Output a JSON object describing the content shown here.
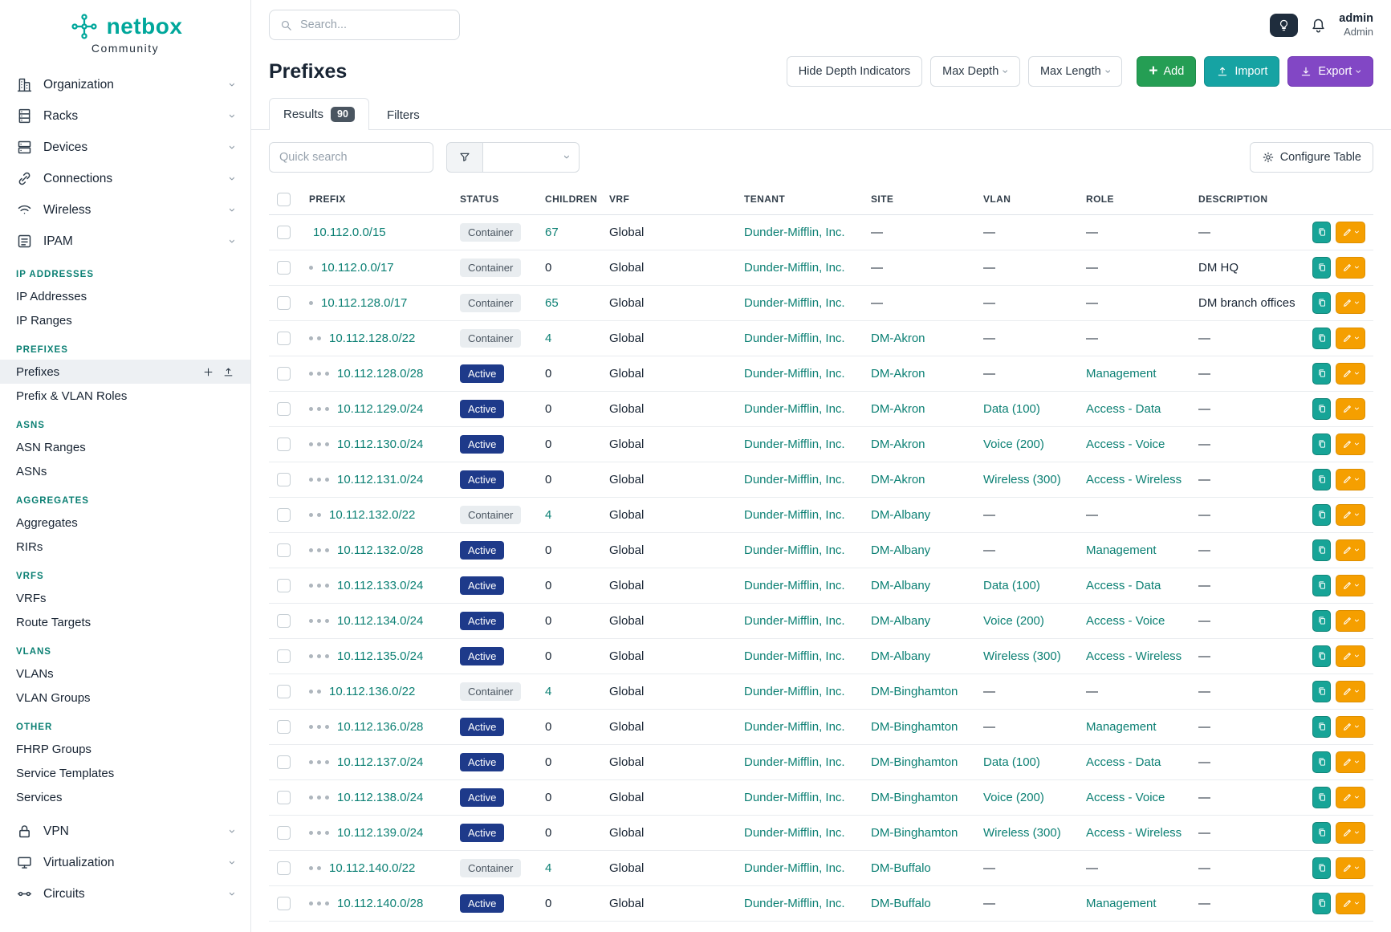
{
  "brand": {
    "name": "netbox",
    "subtitle": "Community",
    "logo_icon": "netbox-logo-icon"
  },
  "colors": {
    "brand_teal": "#00a79b",
    "link_teal": "#0c8074",
    "active_badge_blue": "#1e3a8a",
    "container_badge_gray": "#e9edf0",
    "add_green": "#259e54",
    "import_teal": "#16a3a3",
    "export_purple": "#8247c5",
    "edit_orange": "#f59f00",
    "clone_teal": "#17a497"
  },
  "topbar": {
    "search_placeholder": "Search...",
    "user_name": "admin",
    "user_role": "Admin",
    "icons": [
      "search-icon",
      "lightbulb-icon",
      "bell-icon"
    ]
  },
  "page": {
    "title": "Prefixes",
    "hide_depth_label": "Hide Depth Indicators",
    "max_depth_label": "Max Depth",
    "max_length_label": "Max Length",
    "add_label": "Add",
    "import_label": "Import",
    "export_label": "Export",
    "configure_table_label": "Configure Table",
    "quick_search_placeholder": "Quick search"
  },
  "tabs": [
    {
      "label": "Results",
      "badge": "90",
      "active": true
    },
    {
      "label": "Filters",
      "active": false
    }
  ],
  "sidebar": {
    "top_items": [
      {
        "label": "Organization",
        "icon": "organization-icon"
      },
      {
        "label": "Racks",
        "icon": "racks-icon"
      },
      {
        "label": "Devices",
        "icon": "devices-icon"
      },
      {
        "label": "Connections",
        "icon": "connections-icon"
      },
      {
        "label": "Wireless",
        "icon": "wireless-icon"
      },
      {
        "label": "IPAM",
        "icon": "ipam-icon",
        "expanded": true
      }
    ],
    "groups": [
      {
        "header": "IP ADDRESSES",
        "links": [
          {
            "label": "IP Addresses"
          },
          {
            "label": "IP Ranges"
          }
        ]
      },
      {
        "header": "PREFIXES",
        "links": [
          {
            "label": "Prefixes",
            "active": true
          },
          {
            "label": "Prefix & VLAN Roles"
          }
        ]
      },
      {
        "header": "ASNS",
        "links": [
          {
            "label": "ASN Ranges"
          },
          {
            "label": "ASNs"
          }
        ]
      },
      {
        "header": "AGGREGATES",
        "links": [
          {
            "label": "Aggregates"
          },
          {
            "label": "RIRs"
          }
        ]
      },
      {
        "header": "VRFS",
        "links": [
          {
            "label": "VRFs"
          },
          {
            "label": "Route Targets"
          }
        ]
      },
      {
        "header": "VLANS",
        "links": [
          {
            "label": "VLANs"
          },
          {
            "label": "VLAN Groups"
          }
        ]
      },
      {
        "header": "OTHER",
        "links": [
          {
            "label": "FHRP Groups"
          },
          {
            "label": "Service Templates"
          },
          {
            "label": "Services"
          }
        ]
      }
    ],
    "bottom_items": [
      {
        "label": "VPN",
        "icon": "vpn-icon"
      },
      {
        "label": "Virtualization",
        "icon": "virtualization-icon"
      },
      {
        "label": "Circuits",
        "icon": "circuits-icon"
      }
    ]
  },
  "table": {
    "columns": [
      "PREFIX",
      "STATUS",
      "CHILDREN",
      "VRF",
      "TENANT",
      "SITE",
      "VLAN",
      "ROLE",
      "DESCRIPTION"
    ],
    "rows": [
      {
        "depth": 0,
        "prefix": "10.112.0.0/15",
        "status": "Container",
        "children": "67",
        "vrf": "Global",
        "tenant": "Dunder-Mifflin, Inc.",
        "site": "—",
        "vlan": "—",
        "role": "—",
        "description": "—"
      },
      {
        "depth": 1,
        "prefix": "10.112.0.0/17",
        "status": "Container",
        "children": "0",
        "vrf": "Global",
        "tenant": "Dunder-Mifflin, Inc.",
        "site": "—",
        "vlan": "—",
        "role": "—",
        "description": "DM HQ"
      },
      {
        "depth": 1,
        "prefix": "10.112.128.0/17",
        "status": "Container",
        "children": "65",
        "vrf": "Global",
        "tenant": "Dunder-Mifflin, Inc.",
        "site": "—",
        "vlan": "—",
        "role": "—",
        "description": "DM branch offices"
      },
      {
        "depth": 2,
        "prefix": "10.112.128.0/22",
        "status": "Container",
        "children": "4",
        "vrf": "Global",
        "tenant": "Dunder-Mifflin, Inc.",
        "site": "DM-Akron",
        "vlan": "—",
        "role": "—",
        "description": "—"
      },
      {
        "depth": 3,
        "prefix": "10.112.128.0/28",
        "status": "Active",
        "children": "0",
        "vrf": "Global",
        "tenant": "Dunder-Mifflin, Inc.",
        "site": "DM-Akron",
        "vlan": "—",
        "role": "Management",
        "description": "—"
      },
      {
        "depth": 3,
        "prefix": "10.112.129.0/24",
        "status": "Active",
        "children": "0",
        "vrf": "Global",
        "tenant": "Dunder-Mifflin, Inc.",
        "site": "DM-Akron",
        "vlan": "Data (100)",
        "role": "Access - Data",
        "description": "—"
      },
      {
        "depth": 3,
        "prefix": "10.112.130.0/24",
        "status": "Active",
        "children": "0",
        "vrf": "Global",
        "tenant": "Dunder-Mifflin, Inc.",
        "site": "DM-Akron",
        "vlan": "Voice (200)",
        "role": "Access - Voice",
        "description": "—"
      },
      {
        "depth": 3,
        "prefix": "10.112.131.0/24",
        "status": "Active",
        "children": "0",
        "vrf": "Global",
        "tenant": "Dunder-Mifflin, Inc.",
        "site": "DM-Akron",
        "vlan": "Wireless (300)",
        "role": "Access - Wireless",
        "description": "—"
      },
      {
        "depth": 2,
        "prefix": "10.112.132.0/22",
        "status": "Container",
        "children": "4",
        "vrf": "Global",
        "tenant": "Dunder-Mifflin, Inc.",
        "site": "DM-Albany",
        "vlan": "—",
        "role": "—",
        "description": "—"
      },
      {
        "depth": 3,
        "prefix": "10.112.132.0/28",
        "status": "Active",
        "children": "0",
        "vrf": "Global",
        "tenant": "Dunder-Mifflin, Inc.",
        "site": "DM-Albany",
        "vlan": "—",
        "role": "Management",
        "description": "—"
      },
      {
        "depth": 3,
        "prefix": "10.112.133.0/24",
        "status": "Active",
        "children": "0",
        "vrf": "Global",
        "tenant": "Dunder-Mifflin, Inc.",
        "site": "DM-Albany",
        "vlan": "Data (100)",
        "role": "Access - Data",
        "description": "—"
      },
      {
        "depth": 3,
        "prefix": "10.112.134.0/24",
        "status": "Active",
        "children": "0",
        "vrf": "Global",
        "tenant": "Dunder-Mifflin, Inc.",
        "site": "DM-Albany",
        "vlan": "Voice (200)",
        "role": "Access - Voice",
        "description": "—"
      },
      {
        "depth": 3,
        "prefix": "10.112.135.0/24",
        "status": "Active",
        "children": "0",
        "vrf": "Global",
        "tenant": "Dunder-Mifflin, Inc.",
        "site": "DM-Albany",
        "vlan": "Wireless (300)",
        "role": "Access - Wireless",
        "description": "—"
      },
      {
        "depth": 2,
        "prefix": "10.112.136.0/22",
        "status": "Container",
        "children": "4",
        "vrf": "Global",
        "tenant": "Dunder-Mifflin, Inc.",
        "site": "DM-Binghamton",
        "vlan": "—",
        "role": "—",
        "description": "—"
      },
      {
        "depth": 3,
        "prefix": "10.112.136.0/28",
        "status": "Active",
        "children": "0",
        "vrf": "Global",
        "tenant": "Dunder-Mifflin, Inc.",
        "site": "DM-Binghamton",
        "vlan": "—",
        "role": "Management",
        "description": "—"
      },
      {
        "depth": 3,
        "prefix": "10.112.137.0/24",
        "status": "Active",
        "children": "0",
        "vrf": "Global",
        "tenant": "Dunder-Mifflin, Inc.",
        "site": "DM-Binghamton",
        "vlan": "Data (100)",
        "role": "Access - Data",
        "description": "—"
      },
      {
        "depth": 3,
        "prefix": "10.112.138.0/24",
        "status": "Active",
        "children": "0",
        "vrf": "Global",
        "tenant": "Dunder-Mifflin, Inc.",
        "site": "DM-Binghamton",
        "vlan": "Voice (200)",
        "role": "Access - Voice",
        "description": "—"
      },
      {
        "depth": 3,
        "prefix": "10.112.139.0/24",
        "status": "Active",
        "children": "0",
        "vrf": "Global",
        "tenant": "Dunder-Mifflin, Inc.",
        "site": "DM-Binghamton",
        "vlan": "Wireless (300)",
        "role": "Access - Wireless",
        "description": "—"
      },
      {
        "depth": 2,
        "prefix": "10.112.140.0/22",
        "status": "Container",
        "children": "4",
        "vrf": "Global",
        "tenant": "Dunder-Mifflin, Inc.",
        "site": "DM-Buffalo",
        "vlan": "—",
        "role": "—",
        "description": "—"
      },
      {
        "depth": 3,
        "prefix": "10.112.140.0/28",
        "status": "Active",
        "children": "0",
        "vrf": "Global",
        "tenant": "Dunder-Mifflin, Inc.",
        "site": "DM-Buffalo",
        "vlan": "—",
        "role": "Management",
        "description": "—"
      }
    ]
  }
}
